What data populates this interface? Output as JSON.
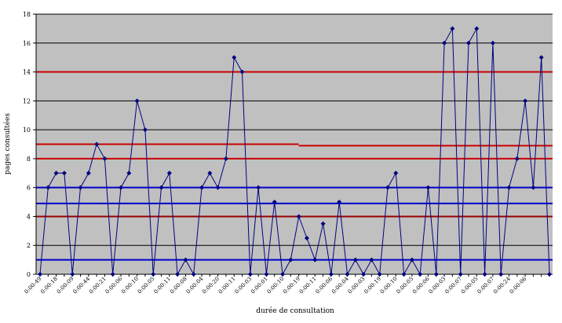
{
  "chart_data": {
    "type": "line",
    "title": "",
    "xlabel": "durée de consultation",
    "ylabel": "pages consultées",
    "ylim": [
      0,
      18
    ],
    "yticks": [
      0,
      2,
      4,
      6,
      8,
      10,
      12,
      14,
      16,
      18
    ],
    "grid": true,
    "legend": "none",
    "plot_background": "#c0c0c0",
    "series": [
      {
        "color": "#000080",
        "marker": "diamond",
        "values": [
          0,
          6,
          7,
          7,
          0,
          6,
          7,
          9,
          8,
          0,
          6,
          7,
          12,
          10,
          0,
          6,
          7,
          0,
          1,
          0,
          6,
          7,
          6,
          8,
          15,
          14,
          0,
          6,
          0,
          5,
          0,
          1,
          4,
          2.5,
          1,
          3.5,
          0,
          5,
          0,
          1,
          0,
          1,
          0,
          6,
          7,
          0,
          1,
          0,
          6,
          0,
          16,
          17,
          0,
          16,
          17,
          0,
          16,
          0,
          6,
          8,
          12,
          6,
          15,
          0
        ]
      }
    ],
    "x_tick_labels": [
      "0:00:49",
      "0:00:18",
      "0:00:09",
      "0:00:44",
      "0:00:21",
      "0:00:06",
      "0:00:10",
      "0:00:05",
      "0:00:11",
      "0:00:08",
      "0:00:04",
      "0:00:20",
      "0:00:11",
      "0:00:03",
      "0:00:01",
      "0:00:10",
      "0:00:19",
      "0:00:11",
      "0:00:06",
      "0:00:04",
      "0:00:03",
      "0:00:19",
      "0:00:10",
      "0:00:05",
      "0:00:06",
      "0:00:03",
      "0:00:07",
      "0:00:05",
      "0:00:07",
      "0:00:24",
      "0:00:06"
    ],
    "reference_lines": [
      {
        "y": 14,
        "color": "#cc0000"
      },
      {
        "y": 9,
        "color": "#cc0000",
        "to_x": 32
      },
      {
        "y": 8.9,
        "color": "#cc0000",
        "from_x": 32
      },
      {
        "y": 8,
        "color": "#cc0000"
      },
      {
        "y": 4,
        "color": "#990000"
      },
      {
        "y": 6,
        "color": "#0000cc"
      },
      {
        "y": 4.9,
        "color": "#0000cc"
      },
      {
        "y": 1,
        "color": "#0000cc"
      }
    ]
  }
}
